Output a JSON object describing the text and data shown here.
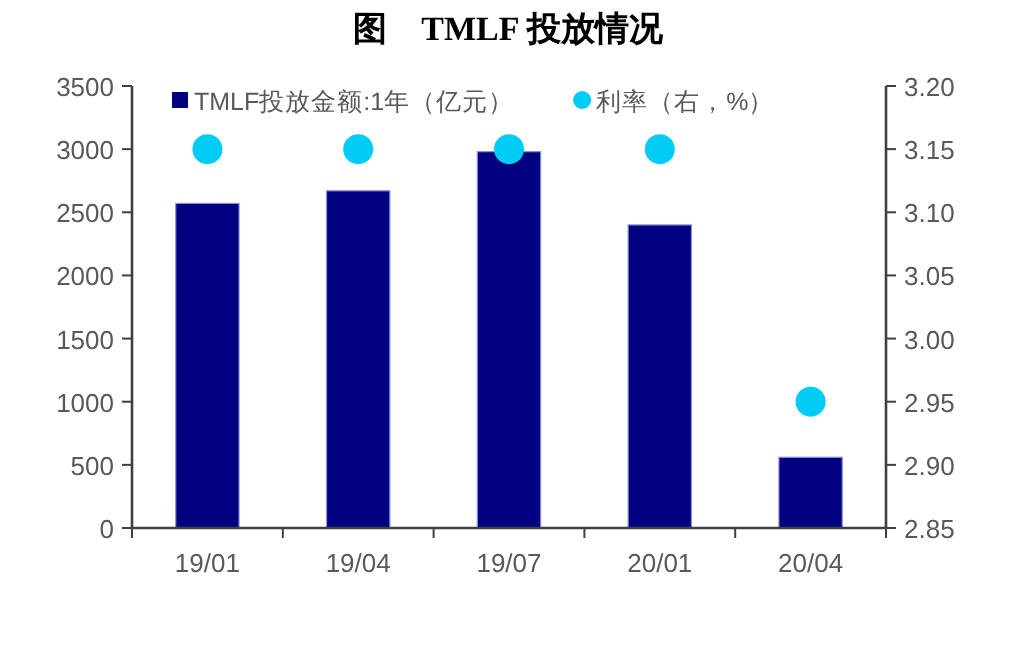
{
  "chart_data": {
    "type": "bar",
    "title": "图　TMLF 投放情况",
    "categories": [
      "19/01",
      "19/04",
      "19/07",
      "20/01",
      "20/04"
    ],
    "series": [
      {
        "name": "TMLF投放金额:1年（亿元）",
        "color": "#000080",
        "values": [
          2570,
          2670,
          2980,
          2400,
          560
        ]
      },
      {
        "name": "利率（右，%）",
        "type": "scatter",
        "axis": "y2",
        "marker": "circle",
        "color": "#00ccf5",
        "values": [
          3.15,
          3.15,
          3.15,
          3.15,
          2.95
        ]
      }
    ],
    "ylim": [
      0,
      3500
    ],
    "yticks": [
      0,
      500,
      1000,
      1500,
      2000,
      2500,
      3000,
      3500
    ],
    "y2lim": [
      2.85,
      3.2
    ],
    "y2ticks": [
      {
        "value": 2.85,
        "label": "2.85"
      },
      {
        "value": 2.9,
        "label": "2.90"
      },
      {
        "value": 2.95,
        "label": "2.95"
      },
      {
        "value": 3.0,
        "label": "3.00"
      },
      {
        "value": 3.05,
        "label": "3.05"
      },
      {
        "value": 3.1,
        "label": "3.10"
      },
      {
        "value": 3.15,
        "label": "3.15"
      },
      {
        "value": 3.2,
        "label": "3.20"
      }
    ],
    "legend": "top",
    "grid": false
  }
}
